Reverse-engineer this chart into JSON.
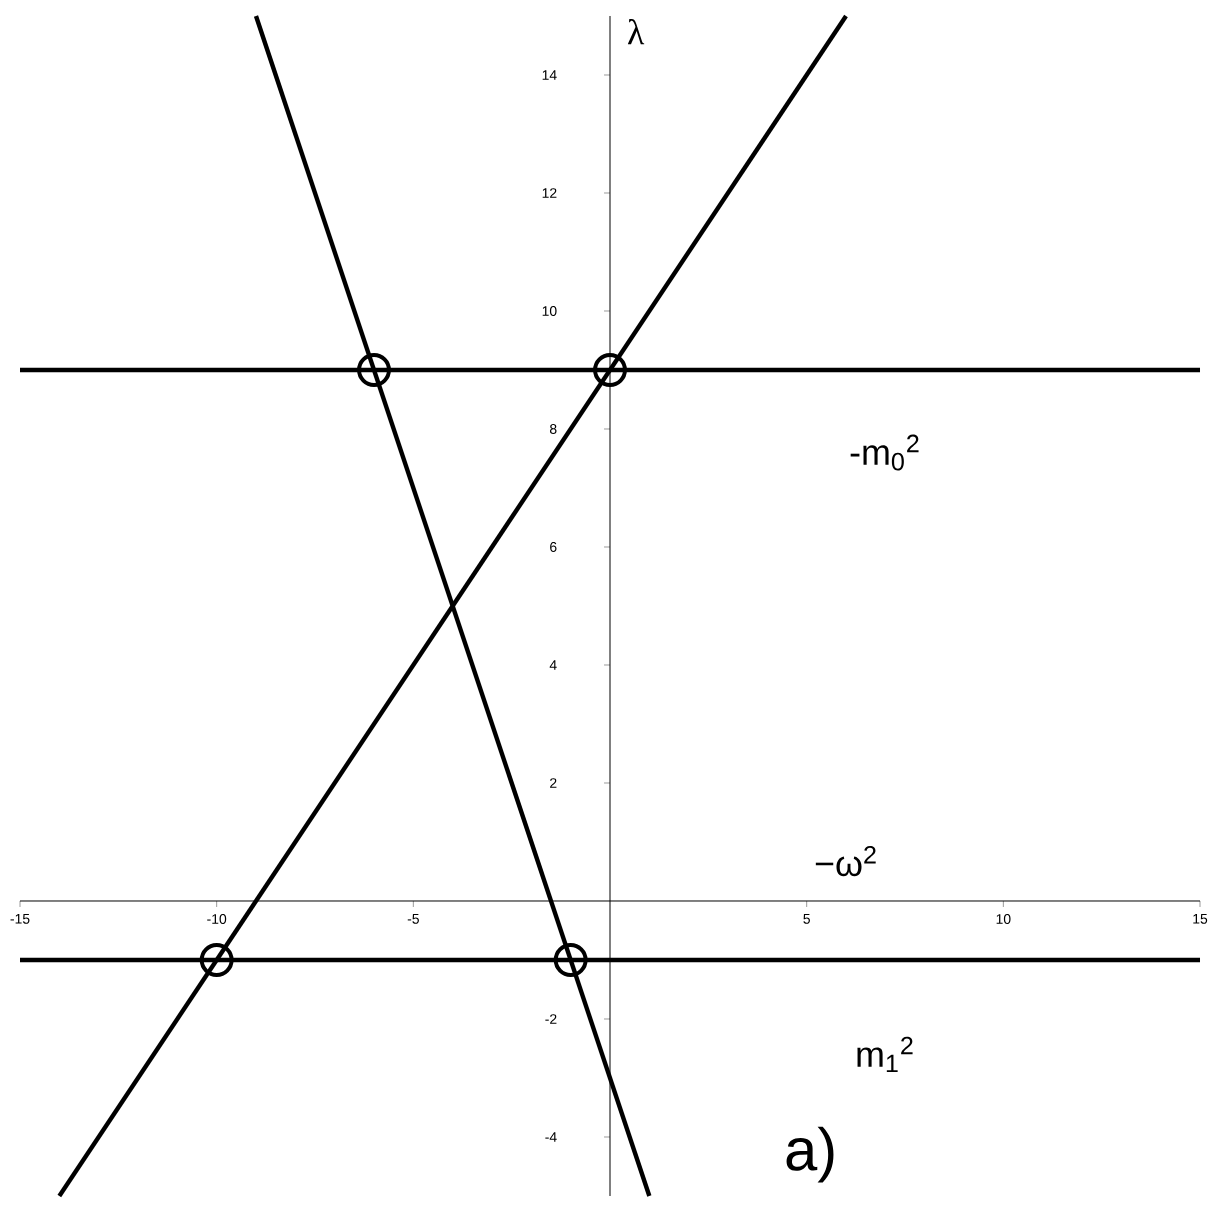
{
  "chart_data": {
    "type": "line",
    "ylabel": "λ",
    "xlabel": "−ω$^{2}$",
    "xlim": [
      -15,
      15
    ],
    "ylim": [
      -5,
      15
    ],
    "xticks": [
      -15,
      -10,
      -5,
      5,
      10,
      15
    ],
    "yticks": [
      -4,
      -2,
      2,
      4,
      6,
      8,
      10,
      12,
      14
    ],
    "grid": false,
    "legend": false,
    "series": [
      {
        "color": "#000000",
        "x": [
          -15,
          15
        ],
        "values": [
          9,
          9
        ]
      },
      {
        "color": "#000000",
        "x": [
          -15,
          15
        ],
        "values": [
          -1,
          -1
        ]
      },
      {
        "color": "#000000",
        "x": [
          -9,
          1
        ],
        "values": [
          15,
          -5
        ]
      },
      {
        "color": "#000000",
        "x": [
          -14,
          6
        ],
        "values": [
          -5,
          15
        ]
      },
      {
        "type": "scatter",
        "marker": "circle",
        "color": "#000000",
        "x": [
          -6,
          0,
          -10,
          -1
        ],
        "values": [
          9,
          9,
          -1,
          -1
        ]
      }
    ],
    "annotations": [
      "-m$_{0}$$^{2}$",
      "m$_{1}$$^{2}$",
      "a)"
    ]
  }
}
